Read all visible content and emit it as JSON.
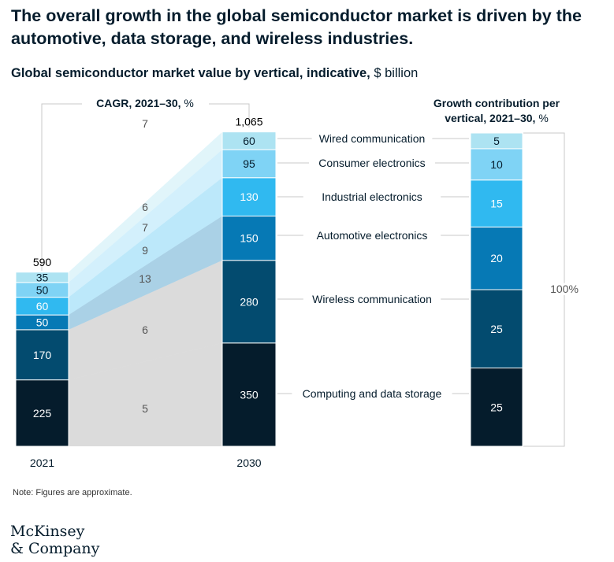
{
  "headline": "The overall growth in the global semiconductor market is driven by the automotive, data storage, and wireless industries.",
  "subtitle_bold": "Global semiconductor market value by vertical, indicative,",
  "subtitle_unit": "$ billion",
  "note": "Note: Figures are approximate.",
  "logo": {
    "line1": "McKinsey",
    "line2": "& Company"
  },
  "colors": {
    "computing": "#051c2c",
    "wireless": "#034b6f",
    "automotive": "#0679b5",
    "industrial": "#30b9f0",
    "consumer": "#7fd3f5",
    "wired": "#ade3f2",
    "bracket": "#c8c8c8"
  },
  "chart_data": [
    {
      "type": "bar",
      "stacked": true,
      "title": "Global semiconductor market value by vertical, indicative, $ billion",
      "categories": [
        "2021",
        "2030"
      ],
      "totals": [
        "590",
        "1,065"
      ],
      "cagr_label": "CAGR, 2021–30,",
      "cagr_unit": "%",
      "series": [
        {
          "name": "Computing and data storage",
          "key": "computing",
          "values": [
            225,
            350
          ],
          "cagr": 5
        },
        {
          "name": "Wireless communication",
          "key": "wireless",
          "values": [
            170,
            280
          ],
          "cagr": 6
        },
        {
          "name": "Automotive electronics",
          "key": "automotive",
          "values": [
            50,
            150
          ],
          "cagr": 13
        },
        {
          "name": "Industrial electronics",
          "key": "industrial",
          "values": [
            60,
            130
          ],
          "cagr": 9
        },
        {
          "name": "Consumer electronics",
          "key": "consumer",
          "values": [
            50,
            95
          ],
          "cagr": 7
        },
        {
          "name": "Wired communication",
          "key": "wired",
          "values": [
            35,
            60
          ],
          "cagr": 6
        }
      ],
      "cagr_total": 7
    },
    {
      "type": "bar",
      "stacked": true,
      "title_line1": "Growth contribution per",
      "title_line2": "vertical, 2021–30,",
      "title_unit": "%",
      "values": [
        25,
        25,
        20,
        15,
        10,
        5
      ],
      "keys": [
        "computing",
        "wireless",
        "automotive",
        "industrial",
        "consumer",
        "wired"
      ],
      "total_label": "100%"
    }
  ]
}
